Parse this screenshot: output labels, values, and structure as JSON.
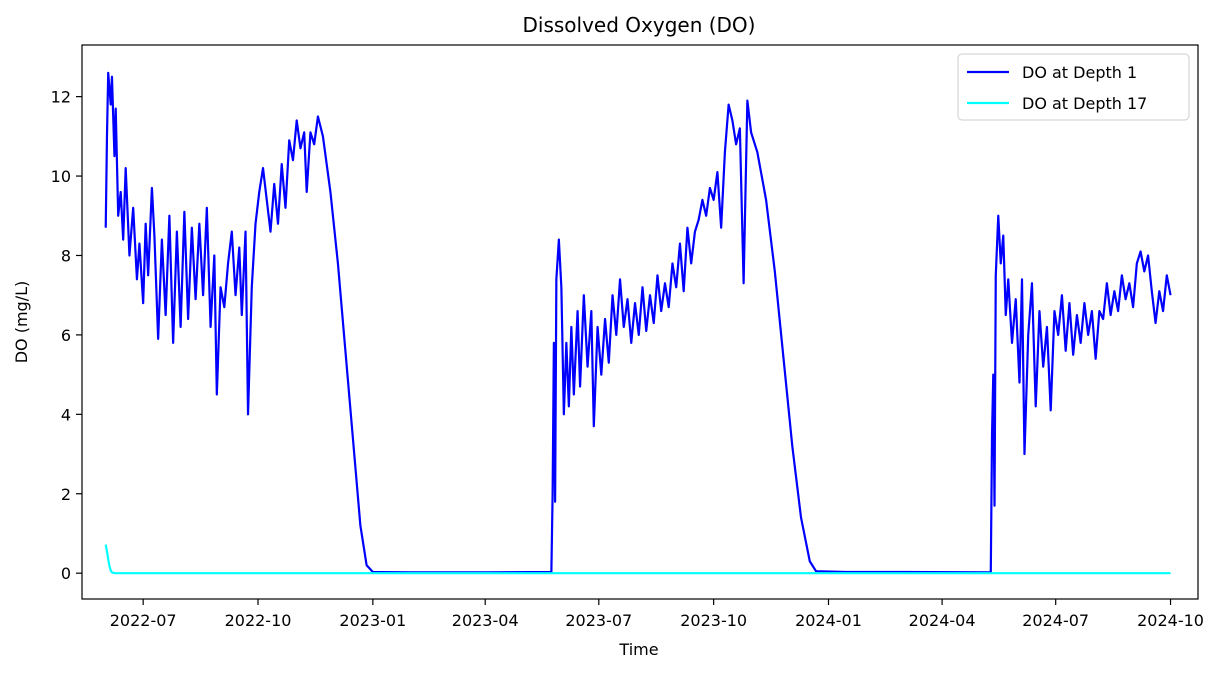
{
  "chart_data": {
    "type": "line",
    "title": "Dissolved Oxygen (DO)",
    "xlabel": "Time",
    "ylabel": "DO (mg/L)",
    "xlim": [
      "2022-05-13",
      "2024-10-23"
    ],
    "ylim": [
      -0.65,
      13.3
    ],
    "x_ticks": [
      "2022-07-01",
      "2022-10-01",
      "2023-01-01",
      "2023-04-01",
      "2023-07-01",
      "2023-10-01",
      "2024-01-01",
      "2024-04-01",
      "2024-07-01",
      "2024-10-01"
    ],
    "x_tick_labels": [
      "2022-07",
      "2022-10",
      "2023-01",
      "2023-04",
      "2023-07",
      "2023-10",
      "2024-01",
      "2024-04",
      "2024-07",
      "2024-10"
    ],
    "y_ticks": [
      0,
      2,
      4,
      6,
      8,
      10,
      12
    ],
    "y_tick_labels": [
      "0",
      "2",
      "4",
      "6",
      "8",
      "10",
      "12"
    ],
    "grid": false,
    "legend": "top-right",
    "series": [
      {
        "name": "DO at Depth 1",
        "color": "#0000ff",
        "points": [
          [
            "2022-06-01",
            8.7
          ],
          [
            "2022-06-02",
            11.0
          ],
          [
            "2022-06-03",
            12.6
          ],
          [
            "2022-06-05",
            11.8
          ],
          [
            "2022-06-06",
            12.5
          ],
          [
            "2022-06-08",
            10.5
          ],
          [
            "2022-06-09",
            11.7
          ],
          [
            "2022-06-11",
            9.0
          ],
          [
            "2022-06-13",
            9.6
          ],
          [
            "2022-06-15",
            8.4
          ],
          [
            "2022-06-17",
            10.2
          ],
          [
            "2022-06-20",
            8.0
          ],
          [
            "2022-06-23",
            9.2
          ],
          [
            "2022-06-26",
            7.4
          ],
          [
            "2022-06-28",
            8.3
          ],
          [
            "2022-07-01",
            6.8
          ],
          [
            "2022-07-03",
            8.8
          ],
          [
            "2022-07-05",
            7.5
          ],
          [
            "2022-07-08",
            9.7
          ],
          [
            "2022-07-10",
            8.5
          ],
          [
            "2022-07-13",
            5.9
          ],
          [
            "2022-07-16",
            8.4
          ],
          [
            "2022-07-19",
            6.5
          ],
          [
            "2022-07-22",
            9.0
          ],
          [
            "2022-07-25",
            5.8
          ],
          [
            "2022-07-28",
            8.6
          ],
          [
            "2022-07-31",
            6.2
          ],
          [
            "2022-08-03",
            9.1
          ],
          [
            "2022-08-06",
            6.4
          ],
          [
            "2022-08-09",
            8.7
          ],
          [
            "2022-08-12",
            6.9
          ],
          [
            "2022-08-15",
            8.8
          ],
          [
            "2022-08-18",
            7.0
          ],
          [
            "2022-08-21",
            9.2
          ],
          [
            "2022-08-24",
            6.2
          ],
          [
            "2022-08-27",
            8.0
          ],
          [
            "2022-08-29",
            4.5
          ],
          [
            "2022-09-01",
            7.2
          ],
          [
            "2022-09-04",
            6.7
          ],
          [
            "2022-09-07",
            7.8
          ],
          [
            "2022-09-10",
            8.6
          ],
          [
            "2022-09-13",
            7.0
          ],
          [
            "2022-09-16",
            8.2
          ],
          [
            "2022-09-18",
            6.5
          ],
          [
            "2022-09-21",
            8.6
          ],
          [
            "2022-09-23",
            4.0
          ],
          [
            "2022-09-26",
            7.2
          ],
          [
            "2022-09-29",
            8.8
          ],
          [
            "2022-10-02",
            9.6
          ],
          [
            "2022-10-05",
            10.2
          ],
          [
            "2022-10-08",
            9.4
          ],
          [
            "2022-10-11",
            8.6
          ],
          [
            "2022-10-14",
            9.8
          ],
          [
            "2022-10-17",
            8.8
          ],
          [
            "2022-10-20",
            10.3
          ],
          [
            "2022-10-23",
            9.2
          ],
          [
            "2022-10-26",
            10.9
          ],
          [
            "2022-10-29",
            10.4
          ],
          [
            "2022-11-01",
            11.4
          ],
          [
            "2022-11-04",
            10.7
          ],
          [
            "2022-11-07",
            11.1
          ],
          [
            "2022-11-09",
            9.6
          ],
          [
            "2022-11-12",
            11.1
          ],
          [
            "2022-11-15",
            10.8
          ],
          [
            "2022-11-18",
            11.5
          ],
          [
            "2022-11-22",
            11.0
          ],
          [
            "2022-11-28",
            9.6
          ],
          [
            "2022-12-04",
            7.8
          ],
          [
            "2022-12-10",
            5.6
          ],
          [
            "2022-12-16",
            3.4
          ],
          [
            "2022-12-22",
            1.2
          ],
          [
            "2022-12-27",
            0.2
          ],
          [
            "2023-01-01",
            0.03
          ],
          [
            "2023-02-01",
            0.02
          ],
          [
            "2023-04-01",
            0.02
          ],
          [
            "2023-05-24",
            0.03
          ],
          [
            "2023-05-25",
            2.0
          ],
          [
            "2023-05-26",
            5.8
          ],
          [
            "2023-05-27",
            1.8
          ],
          [
            "2023-05-28",
            7.4
          ],
          [
            "2023-05-30",
            8.4
          ],
          [
            "2023-06-01",
            7.2
          ],
          [
            "2023-06-03",
            4.0
          ],
          [
            "2023-06-05",
            5.8
          ],
          [
            "2023-06-07",
            4.2
          ],
          [
            "2023-06-09",
            6.2
          ],
          [
            "2023-06-11",
            4.5
          ],
          [
            "2023-06-14",
            6.6
          ],
          [
            "2023-06-16",
            4.7
          ],
          [
            "2023-06-19",
            7.0
          ],
          [
            "2023-06-22",
            5.2
          ],
          [
            "2023-06-25",
            6.6
          ],
          [
            "2023-06-27",
            3.7
          ],
          [
            "2023-06-30",
            6.2
          ],
          [
            "2023-07-03",
            5.0
          ],
          [
            "2023-07-06",
            6.4
          ],
          [
            "2023-07-09",
            5.3
          ],
          [
            "2023-07-12",
            7.0
          ],
          [
            "2023-07-15",
            6.0
          ],
          [
            "2023-07-18",
            7.4
          ],
          [
            "2023-07-21",
            6.2
          ],
          [
            "2023-07-24",
            6.9
          ],
          [
            "2023-07-27",
            5.8
          ],
          [
            "2023-07-30",
            6.8
          ],
          [
            "2023-08-02",
            6.0
          ],
          [
            "2023-08-05",
            7.2
          ],
          [
            "2023-08-08",
            6.1
          ],
          [
            "2023-08-11",
            7.0
          ],
          [
            "2023-08-14",
            6.3
          ],
          [
            "2023-08-17",
            7.5
          ],
          [
            "2023-08-20",
            6.6
          ],
          [
            "2023-08-23",
            7.3
          ],
          [
            "2023-08-26",
            6.7
          ],
          [
            "2023-08-29",
            7.8
          ],
          [
            "2023-09-01",
            7.2
          ],
          [
            "2023-09-04",
            8.3
          ],
          [
            "2023-09-07",
            7.1
          ],
          [
            "2023-09-10",
            8.7
          ],
          [
            "2023-09-13",
            7.8
          ],
          [
            "2023-09-16",
            8.6
          ],
          [
            "2023-09-19",
            8.9
          ],
          [
            "2023-09-22",
            9.4
          ],
          [
            "2023-09-25",
            9.0
          ],
          [
            "2023-09-28",
            9.7
          ],
          [
            "2023-10-01",
            9.4
          ],
          [
            "2023-10-04",
            10.1
          ],
          [
            "2023-10-07",
            8.7
          ],
          [
            "2023-10-10",
            10.6
          ],
          [
            "2023-10-13",
            11.8
          ],
          [
            "2023-10-16",
            11.4
          ],
          [
            "2023-10-19",
            10.8
          ],
          [
            "2023-10-22",
            11.2
          ],
          [
            "2023-10-25",
            7.3
          ],
          [
            "2023-10-28",
            11.9
          ],
          [
            "2023-10-31",
            11.1
          ],
          [
            "2023-11-05",
            10.6
          ],
          [
            "2023-11-12",
            9.4
          ],
          [
            "2023-11-19",
            7.6
          ],
          [
            "2023-11-26",
            5.4
          ],
          [
            "2023-12-03",
            3.2
          ],
          [
            "2023-12-10",
            1.4
          ],
          [
            "2023-12-17",
            0.3
          ],
          [
            "2023-12-22",
            0.05
          ],
          [
            "2024-01-15",
            0.03
          ],
          [
            "2024-03-01",
            0.03
          ],
          [
            "2024-05-10",
            0.02
          ],
          [
            "2024-05-11",
            3.5
          ],
          [
            "2024-05-12",
            5.0
          ],
          [
            "2024-05-13",
            1.7
          ],
          [
            "2024-05-14",
            7.5
          ],
          [
            "2024-05-16",
            9.0
          ],
          [
            "2024-05-18",
            7.8
          ],
          [
            "2024-05-20",
            8.5
          ],
          [
            "2024-05-22",
            6.5
          ],
          [
            "2024-05-24",
            7.4
          ],
          [
            "2024-05-27",
            5.8
          ],
          [
            "2024-05-30",
            6.9
          ],
          [
            "2024-06-02",
            4.8
          ],
          [
            "2024-06-04",
            7.4
          ],
          [
            "2024-06-06",
            3.0
          ],
          [
            "2024-06-09",
            6.0
          ],
          [
            "2024-06-12",
            7.3
          ],
          [
            "2024-06-15",
            4.2
          ],
          [
            "2024-06-18",
            6.6
          ],
          [
            "2024-06-21",
            5.2
          ],
          [
            "2024-06-24",
            6.2
          ],
          [
            "2024-06-27",
            4.1
          ],
          [
            "2024-06-30",
            6.6
          ],
          [
            "2024-07-03",
            6.0
          ],
          [
            "2024-07-06",
            7.0
          ],
          [
            "2024-07-09",
            5.6
          ],
          [
            "2024-07-12",
            6.8
          ],
          [
            "2024-07-15",
            5.5
          ],
          [
            "2024-07-18",
            6.5
          ],
          [
            "2024-07-21",
            5.8
          ],
          [
            "2024-07-24",
            6.8
          ],
          [
            "2024-07-27",
            6.0
          ],
          [
            "2024-07-30",
            6.6
          ],
          [
            "2024-08-02",
            5.4
          ],
          [
            "2024-08-05",
            6.6
          ],
          [
            "2024-08-08",
            6.4
          ],
          [
            "2024-08-11",
            7.3
          ],
          [
            "2024-08-14",
            6.5
          ],
          [
            "2024-08-17",
            7.1
          ],
          [
            "2024-08-20",
            6.6
          ],
          [
            "2024-08-23",
            7.5
          ],
          [
            "2024-08-26",
            6.9
          ],
          [
            "2024-08-29",
            7.3
          ],
          [
            "2024-09-01",
            6.7
          ],
          [
            "2024-09-04",
            7.8
          ],
          [
            "2024-09-07",
            8.1
          ],
          [
            "2024-09-10",
            7.6
          ],
          [
            "2024-09-13",
            8.0
          ],
          [
            "2024-09-16",
            7.1
          ],
          [
            "2024-09-19",
            6.3
          ],
          [
            "2024-09-22",
            7.1
          ],
          [
            "2024-09-25",
            6.6
          ],
          [
            "2024-09-28",
            7.5
          ],
          [
            "2024-10-01",
            7.0
          ]
        ]
      },
      {
        "name": "DO at Depth 17",
        "color": "#00ffff",
        "points": [
          [
            "2022-06-01",
            0.72
          ],
          [
            "2022-06-02",
            0.55
          ],
          [
            "2022-06-03",
            0.35
          ],
          [
            "2022-06-04",
            0.18
          ],
          [
            "2022-06-05",
            0.07
          ],
          [
            "2022-06-06",
            0.02
          ],
          [
            "2022-06-08",
            0.0
          ],
          [
            "2024-10-01",
            0.0
          ]
        ]
      }
    ]
  }
}
